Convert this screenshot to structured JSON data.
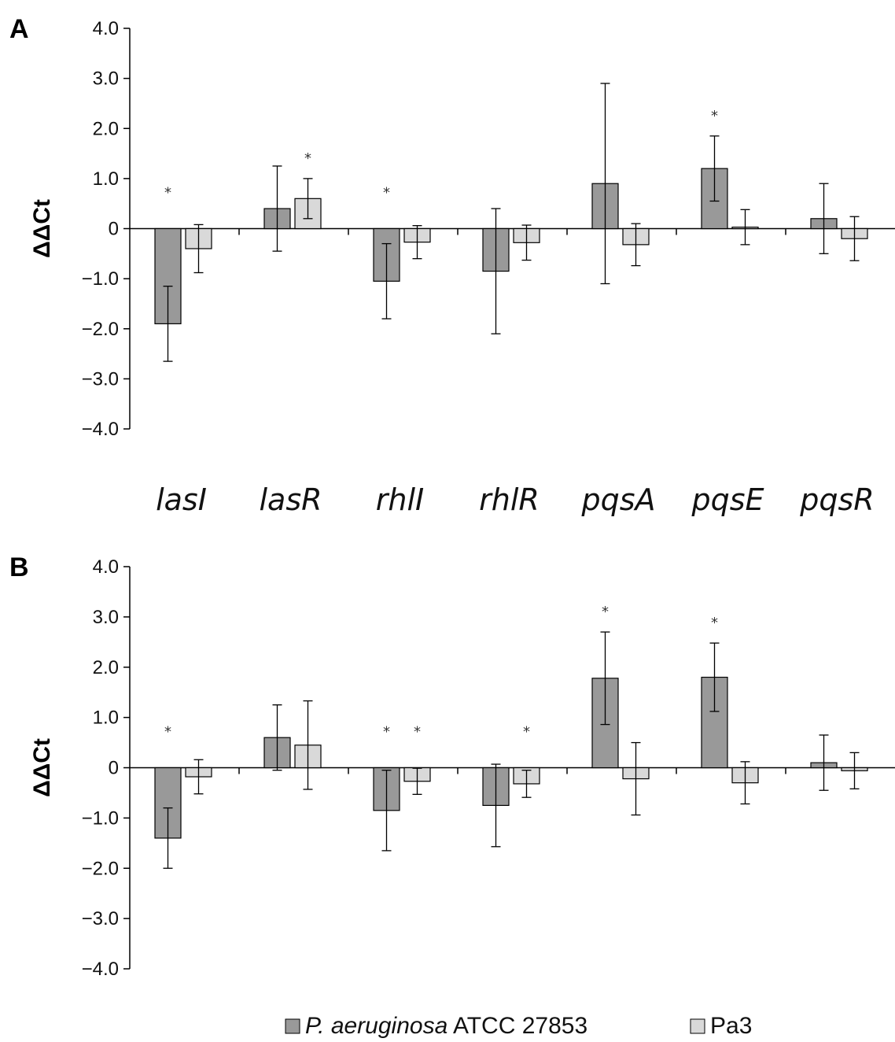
{
  "legend": {
    "series1_italic": "P. aeruginosa",
    "series1_rest": " ATCC 27853",
    "series2": "Pa3"
  },
  "colors": {
    "series1": "#999999",
    "series2": "#d9d9d9",
    "axis": "#000000"
  },
  "chart_data": [
    {
      "type": "bar",
      "panel": "A",
      "ylabel": "ΔΔCt",
      "ylim": [
        -4,
        4
      ],
      "yticks": [
        "4.0",
        "3.0",
        "2.0",
        "1.0",
        "0",
        "−1.0",
        "−2.0",
        "−3.0",
        "−4.0"
      ],
      "categories": [
        "lasI",
        "lasR",
        "rhlI",
        "rhlR",
        "pqsA",
        "pqsE",
        "pqsR"
      ],
      "series": [
        {
          "name": "P. aeruginosa ATCC 27853",
          "values": [
            -1.9,
            0.4,
            -1.05,
            -0.85,
            0.9,
            1.2,
            0.2
          ],
          "error": [
            0.75,
            0.85,
            0.75,
            1.25,
            2.0,
            0.65,
            0.7
          ],
          "significant": [
            true,
            false,
            true,
            false,
            false,
            true,
            false
          ]
        },
        {
          "name": "Pa3",
          "values": [
            -0.4,
            0.6,
            -0.27,
            -0.28,
            -0.32,
            0.03,
            -0.2
          ],
          "error": [
            0.48,
            0.4,
            0.33,
            0.35,
            0.42,
            0.35,
            0.44
          ],
          "significant": [
            false,
            true,
            false,
            false,
            false,
            false,
            false
          ]
        }
      ]
    },
    {
      "type": "bar",
      "panel": "B",
      "ylabel": "ΔΔCt",
      "ylim": [
        -4,
        4
      ],
      "yticks": [
        "4.0",
        "3.0",
        "2.0",
        "1.0",
        "0",
        "−1.0",
        "−2.0",
        "−3.0",
        "−4.0"
      ],
      "categories": [
        "lasI",
        "lasR",
        "rhlI",
        "rhlR",
        "pqsA",
        "pqsE",
        "pqsR"
      ],
      "series": [
        {
          "name": "P. aeruginosa ATCC 27853",
          "values": [
            -1.4,
            0.6,
            -0.85,
            -0.75,
            1.78,
            1.8,
            0.1
          ],
          "error": [
            0.6,
            0.65,
            0.8,
            0.82,
            0.92,
            0.68,
            0.55
          ],
          "significant": [
            true,
            false,
            true,
            false,
            true,
            true,
            false
          ]
        },
        {
          "name": "Pa3",
          "values": [
            -0.18,
            0.45,
            -0.27,
            -0.32,
            -0.22,
            -0.3,
            -0.06
          ],
          "error": [
            0.34,
            0.88,
            0.26,
            0.27,
            0.72,
            0.42,
            0.36
          ],
          "significant": [
            false,
            false,
            true,
            true,
            false,
            false,
            false
          ]
        }
      ]
    }
  ]
}
